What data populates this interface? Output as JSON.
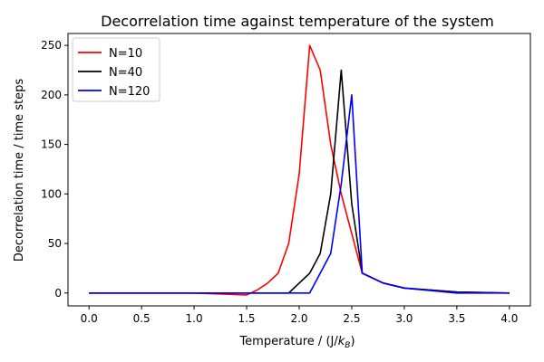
{
  "chart_data": {
    "type": "line",
    "title": "Decorrelation time against temperature of the system",
    "xlabel_prefix": "Temperature / (J/",
    "xlabel_k": "k",
    "xlabel_sub": "B",
    "xlabel_suffix": ")",
    "ylabel": "Decorrelation time / time steps",
    "xlim": [
      -0.2,
      4.2
    ],
    "ylim": [
      -13,
      262
    ],
    "xticks": [
      0.0,
      0.5,
      1.0,
      1.5,
      2.0,
      2.5,
      3.0,
      3.5,
      4.0
    ],
    "xtick_labels": [
      "0.0",
      "0.5",
      "1.0",
      "1.5",
      "2.0",
      "2.5",
      "3.0",
      "3.5",
      "4.0"
    ],
    "yticks": [
      0,
      50,
      100,
      150,
      200,
      250
    ],
    "ytick_labels": [
      "0",
      "50",
      "100",
      "150",
      "200",
      "250"
    ],
    "legend_position": "top-left",
    "grid": false,
    "series": [
      {
        "name": "N=10",
        "color": "#ff0000",
        "x": [
          0.0,
          0.5,
          1.0,
          1.5,
          1.6,
          1.7,
          1.8,
          1.9,
          2.0,
          2.1,
          2.2,
          2.3,
          2.4,
          2.5,
          2.6,
          2.8,
          3.0,
          3.5,
          4.0
        ],
        "y": [
          0,
          0,
          0,
          -2,
          3,
          10,
          20,
          50,
          120,
          250,
          225,
          150,
          100,
          60,
          20,
          10,
          5,
          1,
          0
        ]
      },
      {
        "name": "N=40",
        "color": "#000000",
        "x": [
          0.0,
          0.5,
          1.0,
          1.5,
          1.9,
          2.1,
          2.2,
          2.3,
          2.4,
          2.5,
          2.6,
          2.8,
          3.0,
          3.5,
          4.0
        ],
        "y": [
          0,
          0,
          0,
          0,
          0,
          20,
          40,
          100,
          225,
          90,
          20,
          10,
          5,
          1,
          0
        ]
      },
      {
        "name": "N=120",
        "color": "#0000ff",
        "x": [
          0.0,
          0.5,
          1.0,
          1.5,
          2.0,
          2.1,
          2.2,
          2.3,
          2.4,
          2.5,
          2.6,
          2.8,
          3.0,
          3.5,
          4.0
        ],
        "y": [
          0,
          0,
          0,
          0,
          0,
          0,
          20,
          40,
          110,
          200,
          20,
          10,
          5,
          0,
          0
        ]
      }
    ]
  }
}
